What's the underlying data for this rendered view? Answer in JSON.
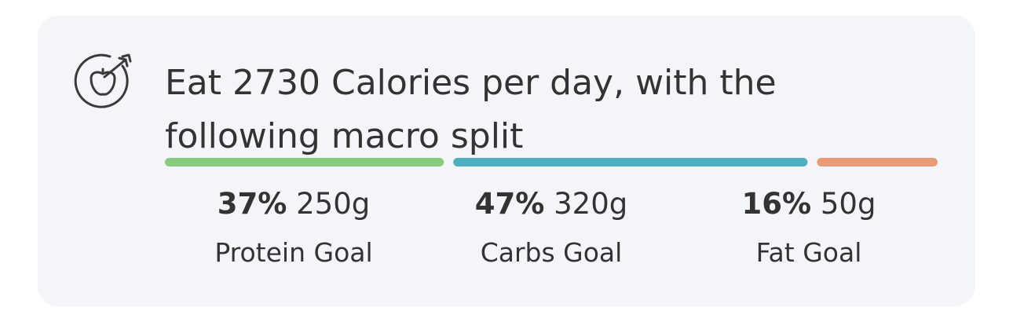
{
  "title": "Eat 2730 Calories per day, with the following macro split",
  "macros": [
    {
      "percent": 37,
      "percent_label": "37%",
      "grams": "250g",
      "label": "Protein Goal",
      "color": "#86cc7c"
    },
    {
      "percent": 47,
      "percent_label": "47%",
      "grams": "320g",
      "label": "Carbs Goal",
      "color": "#4fafc1"
    },
    {
      "percent": 16,
      "percent_label": "16%",
      "grams": "50g",
      "label": "Fat Goal",
      "color": "#eb9b73"
    }
  ]
}
